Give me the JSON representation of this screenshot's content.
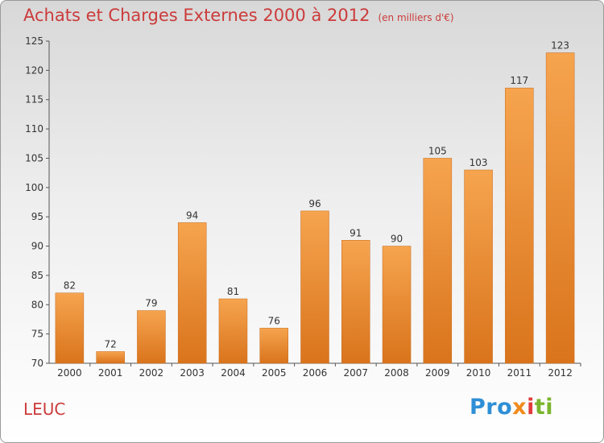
{
  "header": {
    "title": "Achats et Charges Externes 2000 à 2012",
    "unit": "(en milliers d'€)"
  },
  "footer": {
    "town": "LEUC",
    "logo_parts": [
      "Pro",
      "x",
      "i",
      "ti"
    ]
  },
  "colors": {
    "bar_top": "#f6a44f",
    "bar_bottom": "#d9741c",
    "title": "#cc3b3b"
  },
  "chart_data": {
    "type": "bar",
    "title": "Achats et Charges Externes 2000 à 2012",
    "subtitle": "(en milliers d'€)",
    "categories": [
      "2000",
      "2001",
      "2002",
      "2003",
      "2004",
      "2005",
      "2006",
      "2007",
      "2008",
      "2009",
      "2010",
      "2011",
      "2012"
    ],
    "values": [
      82,
      72,
      79,
      94,
      81,
      76,
      96,
      91,
      90,
      105,
      103,
      117,
      123
    ],
    "ylim": [
      70,
      125
    ],
    "yticks": [
      70,
      75,
      80,
      85,
      90,
      95,
      100,
      105,
      110,
      115,
      120,
      125
    ],
    "grid": false,
    "data_labels": true
  }
}
